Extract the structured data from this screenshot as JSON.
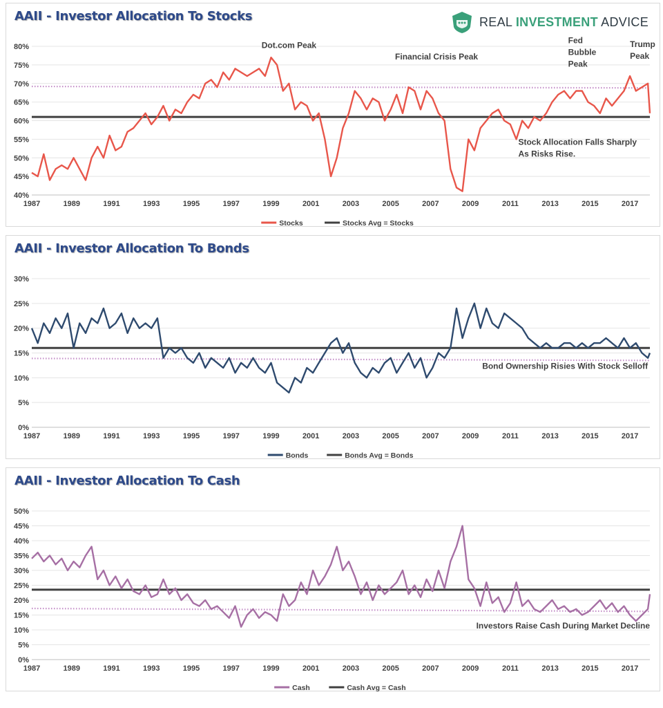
{
  "brand": {
    "name_part1": "REAL ",
    "name_part2": "INVESTMENT",
    "name_part3": " ADVICE",
    "shield_color": "#3aa07a",
    "text_color": "#2f3b44"
  },
  "chart_data": [
    {
      "type": "line",
      "title": "AAII - Investor Allocation To Stocks",
      "xlabel": "",
      "ylabel": "",
      "xlim": [
        1987,
        2018
      ],
      "ylim": [
        40,
        80
      ],
      "yticks": [
        "40%",
        "45%",
        "50%",
        "55%",
        "60%",
        "65%",
        "70%",
        "75%",
        "80%"
      ],
      "xticks": [
        "1987",
        "1989",
        "1991",
        "1993",
        "1995",
        "1997",
        "1999",
        "2001",
        "2003",
        "2005",
        "2007",
        "2009",
        "2011",
        "2013",
        "2015",
        "2017"
      ],
      "grid": "horizontal",
      "legend_position": "bottom",
      "series": [
        {
          "name": "Stocks",
          "color": "#e8564a",
          "style": "solid",
          "x": [
            1987.0,
            1987.3,
            1987.6,
            1987.9,
            1988.2,
            1988.5,
            1988.8,
            1989.1,
            1989.4,
            1989.7,
            1990.0,
            1990.3,
            1990.6,
            1990.9,
            1991.2,
            1991.5,
            1991.8,
            1992.1,
            1992.4,
            1992.7,
            1993.0,
            1993.3,
            1993.6,
            1993.9,
            1994.2,
            1994.5,
            1994.8,
            1995.1,
            1995.4,
            1995.7,
            1996.0,
            1996.3,
            1996.6,
            1996.9,
            1997.2,
            1997.5,
            1997.8,
            1998.1,
            1998.4,
            1998.7,
            1999.0,
            1999.3,
            1999.6,
            1999.9,
            2000.2,
            2000.5,
            2000.8,
            2001.1,
            2001.4,
            2001.7,
            2002.0,
            2002.3,
            2002.6,
            2002.9,
            2003.2,
            2003.5,
            2003.8,
            2004.1,
            2004.4,
            2004.7,
            2005.0,
            2005.3,
            2005.6,
            2005.9,
            2006.2,
            2006.5,
            2006.8,
            2007.1,
            2007.4,
            2007.7,
            2008.0,
            2008.3,
            2008.6,
            2008.9,
            2009.2,
            2009.5,
            2009.8,
            2010.1,
            2010.4,
            2010.7,
            2011.0,
            2011.3,
            2011.6,
            2011.9,
            2012.2,
            2012.5,
            2012.8,
            2013.1,
            2013.4,
            2013.7,
            2014.0,
            2014.3,
            2014.6,
            2014.9,
            2015.2,
            2015.5,
            2015.8,
            2016.1,
            2016.4,
            2016.7,
            2017.0,
            2017.3,
            2017.6,
            2017.9,
            2018.0
          ],
          "values": [
            46,
            45,
            51,
            44,
            47,
            48,
            47,
            50,
            47,
            44,
            50,
            53,
            50,
            56,
            52,
            53,
            57,
            58,
            60,
            62,
            59,
            61,
            64,
            60,
            63,
            62,
            65,
            67,
            66,
            70,
            71,
            69,
            73,
            71,
            74,
            73,
            72,
            73,
            74,
            72,
            77,
            75,
            68,
            70,
            63,
            65,
            64,
            60,
            62,
            55,
            45,
            50,
            58,
            62,
            68,
            66,
            63,
            66,
            65,
            60,
            63,
            67,
            62,
            69,
            68,
            63,
            68,
            66,
            62,
            60,
            47,
            42,
            41,
            55,
            52,
            58,
            60,
            62,
            63,
            60,
            59,
            55,
            60,
            58,
            61,
            60,
            62,
            65,
            67,
            68,
            66,
            68,
            68,
            65,
            64,
            62,
            66,
            64,
            66,
            68,
            72,
            68,
            69,
            70,
            62
          ]
        },
        {
          "name": "Stocks Avg = Stocks",
          "color": "#404040",
          "style": "solid",
          "x": [
            1987.0,
            2018.0
          ],
          "values": [
            61,
            61
          ]
        },
        {
          "name": "",
          "color": "#c48fc8",
          "style": "dotted",
          "x": [
            1987.0,
            2018.0
          ],
          "values": [
            69.2,
            68.8
          ]
        }
      ],
      "annotations": [
        {
          "lines": [
            "Dot.com Peak"
          ],
          "x": 1999.9,
          "y": 79.5,
          "anchor": "middle"
        },
        {
          "lines": [
            "Financial Crisis Peak"
          ],
          "x": 2007.3,
          "y": 76.5,
          "anchor": "middle"
        },
        {
          "lines": [
            "Fed",
            "Bubble",
            "Peak"
          ],
          "x": 2013.9,
          "y": 80.8,
          "anchor": "start"
        },
        {
          "lines": [
            "Trump",
            "Peak"
          ],
          "x": 2017.0,
          "y": 79.8,
          "anchor": "start"
        },
        {
          "lines": [
            "Stock Allocation Falls Sharply",
            "As Risks Rise."
          ],
          "x": 2011.4,
          "y": 53.5,
          "anchor": "start"
        }
      ]
    },
    {
      "type": "line",
      "title": "AAII - Investor Allocation To Bonds",
      "xlabel": "",
      "ylabel": "",
      "xlim": [
        1987,
        2018
      ],
      "ylim": [
        0,
        30
      ],
      "yticks": [
        "0%",
        "5%",
        "10%",
        "15%",
        "20%",
        "25%",
        "30%"
      ],
      "xticks": [
        "1987",
        "1989",
        "1991",
        "1993",
        "1995",
        "1997",
        "1999",
        "2001",
        "2003",
        "2005",
        "2007",
        "2009",
        "2011",
        "2013",
        "2015",
        "2017"
      ],
      "grid": "horizontal",
      "legend_position": "bottom",
      "series": [
        {
          "name": "Bonds",
          "color": "#2e4a6e",
          "style": "solid",
          "x": [
            1987.0,
            1987.3,
            1987.6,
            1987.9,
            1988.2,
            1988.5,
            1988.8,
            1989.1,
            1989.4,
            1989.7,
            1990.0,
            1990.3,
            1990.6,
            1990.9,
            1991.2,
            1991.5,
            1991.8,
            1992.1,
            1992.4,
            1992.7,
            1993.0,
            1993.3,
            1993.6,
            1993.9,
            1994.2,
            1994.5,
            1994.8,
            1995.1,
            1995.4,
            1995.7,
            1996.0,
            1996.3,
            1996.6,
            1996.9,
            1997.2,
            1997.5,
            1997.8,
            1998.1,
            1998.4,
            1998.7,
            1999.0,
            1999.3,
            1999.6,
            1999.9,
            2000.2,
            2000.5,
            2000.8,
            2001.1,
            2001.4,
            2001.7,
            2002.0,
            2002.3,
            2002.6,
            2002.9,
            2003.2,
            2003.5,
            2003.8,
            2004.1,
            2004.4,
            2004.7,
            2005.0,
            2005.3,
            2005.6,
            2005.9,
            2006.2,
            2006.5,
            2006.8,
            2007.1,
            2007.4,
            2007.7,
            2008.0,
            2008.3,
            2008.6,
            2008.9,
            2009.2,
            2009.5,
            2009.8,
            2010.1,
            2010.4,
            2010.7,
            2011.0,
            2011.3,
            2011.6,
            2011.9,
            2012.2,
            2012.5,
            2012.8,
            2013.1,
            2013.4,
            2013.7,
            2014.0,
            2014.3,
            2014.6,
            2014.9,
            2015.2,
            2015.5,
            2015.8,
            2016.1,
            2016.4,
            2016.7,
            2017.0,
            2017.3,
            2017.6,
            2017.9,
            2018.0
          ],
          "values": [
            20,
            17,
            21,
            19,
            22,
            20,
            23,
            16,
            21,
            19,
            22,
            21,
            24,
            20,
            21,
            23,
            19,
            22,
            20,
            21,
            20,
            22,
            14,
            16,
            15,
            16,
            14,
            13,
            15,
            12,
            14,
            13,
            12,
            14,
            11,
            13,
            12,
            14,
            12,
            11,
            13,
            9,
            8,
            7,
            10,
            9,
            12,
            11,
            13,
            15,
            17,
            18,
            15,
            17,
            13,
            11,
            10,
            12,
            11,
            13,
            14,
            11,
            13,
            15,
            12,
            14,
            10,
            12,
            15,
            14,
            16,
            24,
            18,
            22,
            25,
            20,
            24,
            21,
            20,
            23,
            22,
            21,
            20,
            18,
            17,
            16,
            17,
            16,
            16,
            17,
            17,
            16,
            17,
            16,
            17,
            17,
            18,
            17,
            16,
            18,
            16,
            17,
            15,
            14,
            15
          ]
        },
        {
          "name": "Bonds Avg = Bonds",
          "color": "#404040",
          "style": "solid",
          "x": [
            1987.0,
            2018.0
          ],
          "values": [
            16,
            16
          ]
        },
        {
          "name": "",
          "color": "#c48fc8",
          "style": "dotted",
          "x": [
            1987.0,
            2018.0
          ],
          "values": [
            13.9,
            13.5
          ]
        }
      ],
      "annotations": [
        {
          "lines": [
            "Bond Ownership Risies With Stock Selloff"
          ],
          "x": 2017.9,
          "y": 11.8,
          "anchor": "end"
        }
      ]
    },
    {
      "type": "line",
      "title": "AAII - Investor Allocation To Cash",
      "xlabel": "",
      "ylabel": "",
      "xlim": [
        1987,
        2018
      ],
      "ylim": [
        0,
        50
      ],
      "yticks": [
        "0%",
        "5%",
        "10%",
        "15%",
        "20%",
        "25%",
        "30%",
        "35%",
        "40%",
        "45%",
        "50%"
      ],
      "xticks": [
        "1987",
        "1989",
        "1991",
        "1993",
        "1995",
        "1997",
        "1999",
        "2001",
        "2003",
        "2005",
        "2007",
        "2009",
        "2011",
        "2013",
        "2015",
        "2017"
      ],
      "grid": "horizontal",
      "legend_position": "bottom",
      "series": [
        {
          "name": "Cash",
          "color": "#a66fa4",
          "style": "solid",
          "x": [
            1987.0,
            1987.3,
            1987.6,
            1987.9,
            1988.2,
            1988.5,
            1988.8,
            1989.1,
            1989.4,
            1989.7,
            1990.0,
            1990.3,
            1990.6,
            1990.9,
            1991.2,
            1991.5,
            1991.8,
            1992.1,
            1992.4,
            1992.7,
            1993.0,
            1993.3,
            1993.6,
            1993.9,
            1994.2,
            1994.5,
            1994.8,
            1995.1,
            1995.4,
            1995.7,
            1996.0,
            1996.3,
            1996.6,
            1996.9,
            1997.2,
            1997.5,
            1997.8,
            1998.1,
            1998.4,
            1998.7,
            1999.0,
            1999.3,
            1999.6,
            1999.9,
            2000.2,
            2000.5,
            2000.8,
            2001.1,
            2001.4,
            2001.7,
            2002.0,
            2002.3,
            2002.6,
            2002.9,
            2003.2,
            2003.5,
            2003.8,
            2004.1,
            2004.4,
            2004.7,
            2005.0,
            2005.3,
            2005.6,
            2005.9,
            2006.2,
            2006.5,
            2006.8,
            2007.1,
            2007.4,
            2007.7,
            2008.0,
            2008.3,
            2008.6,
            2008.9,
            2009.2,
            2009.5,
            2009.8,
            2010.1,
            2010.4,
            2010.7,
            2011.0,
            2011.3,
            2011.6,
            2011.9,
            2012.2,
            2012.5,
            2012.8,
            2013.1,
            2013.4,
            2013.7,
            2014.0,
            2014.3,
            2014.6,
            2014.9,
            2015.2,
            2015.5,
            2015.8,
            2016.1,
            2016.4,
            2016.7,
            2017.0,
            2017.3,
            2017.6,
            2017.9,
            2018.0
          ],
          "values": [
            34,
            36,
            33,
            35,
            32,
            34,
            30,
            33,
            31,
            35,
            38,
            27,
            30,
            25,
            28,
            24,
            27,
            23,
            22,
            25,
            21,
            22,
            27,
            22,
            24,
            20,
            22,
            19,
            18,
            20,
            17,
            18,
            16,
            14,
            18,
            11,
            15,
            17,
            14,
            16,
            15,
            13,
            22,
            18,
            20,
            26,
            22,
            30,
            25,
            28,
            32,
            38,
            30,
            33,
            28,
            22,
            26,
            20,
            25,
            22,
            24,
            26,
            30,
            22,
            25,
            21,
            27,
            23,
            30,
            24,
            33,
            38,
            45,
            27,
            24,
            18,
            26,
            19,
            21,
            16,
            19,
            26,
            18,
            20,
            17,
            16,
            18,
            20,
            17,
            18,
            16,
            17,
            15,
            16,
            18,
            20,
            17,
            19,
            16,
            18,
            15,
            13,
            15,
            17,
            22
          ]
        },
        {
          "name": "Cash Avg = Cash",
          "color": "#404040",
          "style": "solid",
          "x": [
            1987.0,
            2018.0
          ],
          "values": [
            23.5,
            23.5
          ]
        },
        {
          "name": "",
          "color": "#c48fc8",
          "style": "dotted",
          "x": [
            1987.0,
            2018.0
          ],
          "values": [
            17.2,
            16.2
          ]
        }
      ],
      "annotations": [
        {
          "lines": [
            "Investors Raise Cash During Market Decline"
          ],
          "x": 2018.0,
          "y": 10.5,
          "anchor": "end"
        }
      ]
    }
  ]
}
